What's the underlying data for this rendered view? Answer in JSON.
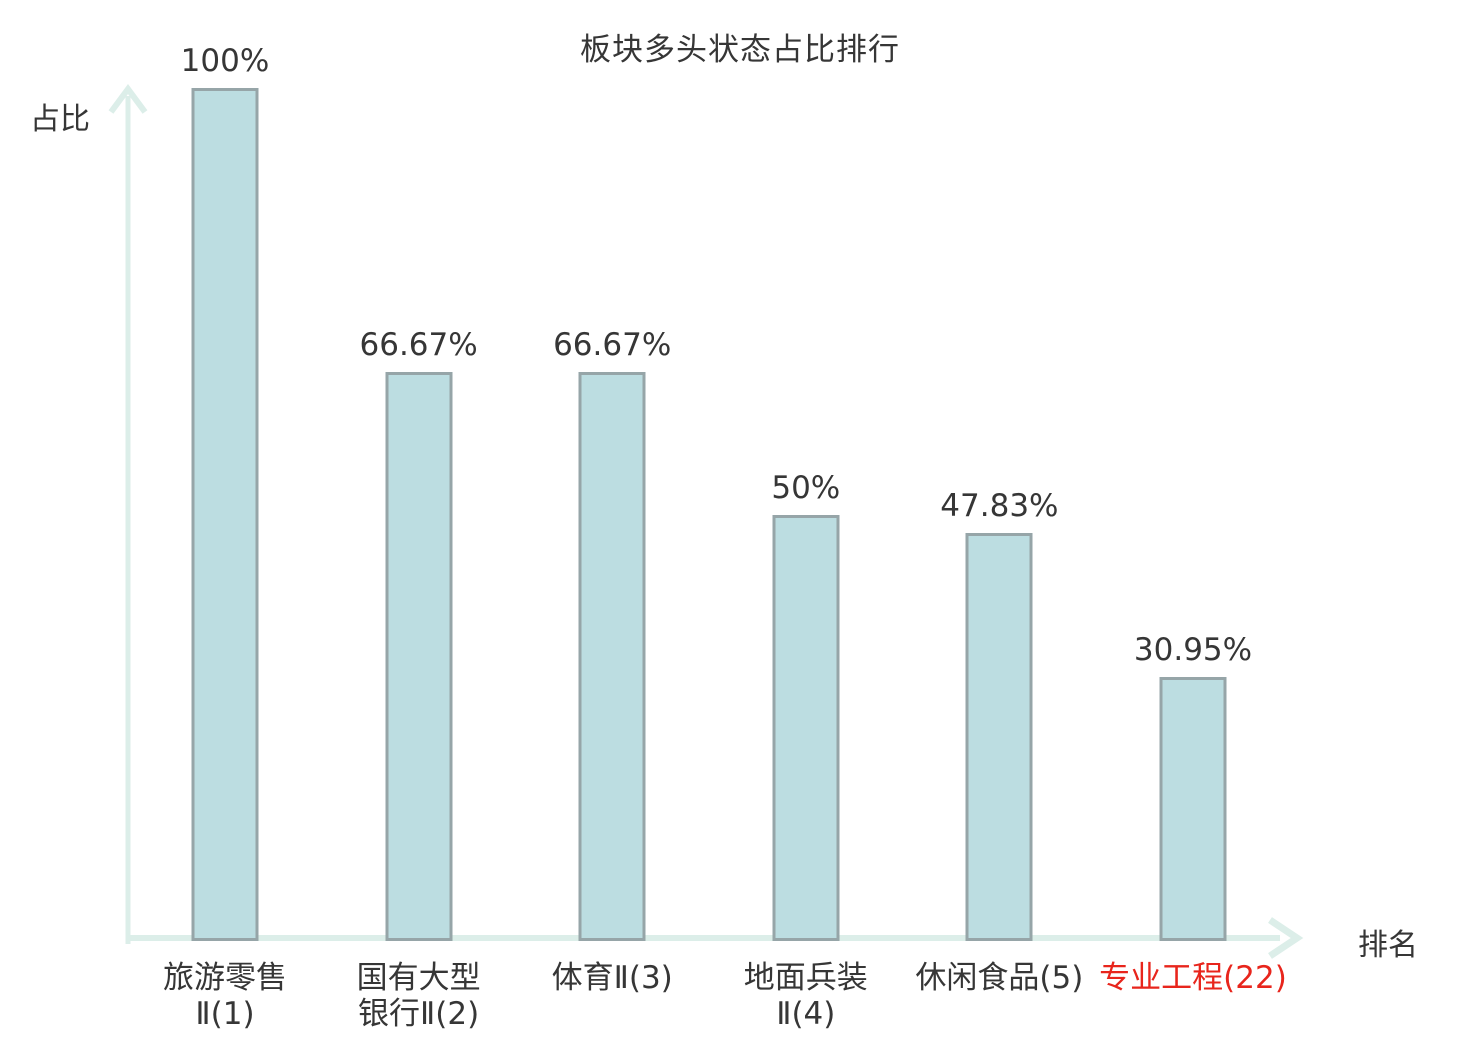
{
  "chart_data": {
    "type": "bar",
    "title": "板块多头状态占比排行",
    "xlabel": "排名",
    "ylabel": "占比",
    "ylim": [
      0,
      100
    ],
    "grid": false,
    "legend": "none",
    "categories": [
      "旅游零售Ⅱ(1)",
      "国有大型银行Ⅱ(2)",
      "体育Ⅱ(3)",
      "地面兵装Ⅱ(4)",
      "休闲食品(5)",
      "专业工程(22)"
    ],
    "values": [
      100,
      66.67,
      66.67,
      50,
      47.83,
      30.95
    ],
    "value_labels": [
      "100%",
      "66.67%",
      "66.67%",
      "50%",
      "47.83%",
      "30.95%"
    ],
    "category_lines": [
      [
        "旅游零售",
        "Ⅱ(1)"
      ],
      [
        "国有大型",
        "银行Ⅱ(2)"
      ],
      [
        "体育Ⅱ(3)"
      ],
      [
        "地面兵装",
        "Ⅱ(4)"
      ],
      [
        "休闲食品(5)"
      ],
      [
        "专业工程(22)"
      ]
    ],
    "category_colors": [
      "#363636",
      "#363636",
      "#363636",
      "#363636",
      "#363636",
      "#e8251c"
    ],
    "colors": {
      "bar_fill": "#bcdde1",
      "bar_border": "#96a5a8",
      "axis": "#dceee9",
      "text": "#363636",
      "highlight": "#e8251c"
    }
  }
}
